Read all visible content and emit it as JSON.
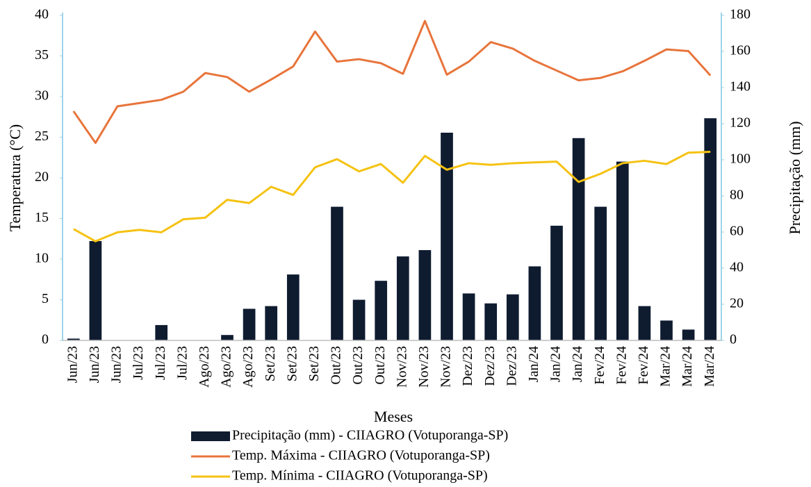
{
  "chart_data": {
    "type": "combo",
    "xlabel": "Meses",
    "ylabel": "Temperatura (°C)",
    "y2label": "Precipitação (mm)",
    "categories": [
      "Jun/23",
      "Jun/23",
      "Jun/23",
      "Jul/23",
      "Jul/23",
      "Jul/23",
      "Ago/23",
      "Ago/23",
      "Ago/23",
      "Set/23",
      "Set/23",
      "Set/23",
      "Out/23",
      "Out/23",
      "Out/23",
      "Nov/23",
      "Nov/23",
      "Nov/23",
      "Dez/23",
      "Dez/23",
      "Dez/23",
      "Jan/24",
      "Jan/24",
      "Jan/24",
      "Fev/24",
      "Fev/24",
      "Fev/24",
      "Mar/24",
      "Mar/24",
      "Mar/24"
    ],
    "series": [
      {
        "name": "Precipitação (mm) - CIIAGRO (Votuporanga-SP)",
        "type": "bar",
        "axis": "y2",
        "color": "#0f1c30",
        "values": [
          1,
          55,
          0,
          0,
          8.5,
          0,
          0,
          3,
          17.5,
          19,
          36.5,
          0,
          74,
          22.5,
          33,
          46.5,
          50,
          115,
          26,
          20.5,
          25.5,
          41,
          63.5,
          112,
          74,
          99,
          19,
          11,
          6,
          123
        ]
      },
      {
        "name": "Temp. Máxima - CIIAGRO (Votuporanga-SP)",
        "type": "line",
        "color": "#e8743b",
        "values": [
          28.2,
          24.3,
          28.8,
          29.2,
          29.6,
          30.6,
          32.9,
          32.4,
          30.6,
          32.1,
          33.7,
          38.0,
          34.3,
          34.6,
          34.1,
          32.8,
          39.3,
          32.7,
          34.3,
          36.7,
          35.9,
          34.4,
          33.2,
          32.0,
          32.3,
          33.1,
          34.4,
          35.8,
          35.6,
          32.6
        ]
      },
      {
        "name": "Temp. Mínima - CIIAGRO (Votuporanga-SP)",
        "type": "line",
        "color": "#f5c211",
        "values": [
          13.7,
          12.2,
          13.3,
          13.6,
          13.3,
          14.9,
          15.1,
          17.3,
          16.9,
          18.9,
          17.9,
          21.3,
          22.3,
          20.8,
          21.7,
          19.4,
          22.7,
          21.0,
          21.8,
          21.6,
          21.8,
          21.9,
          22.0,
          19.5,
          20.5,
          21.8,
          22.1,
          21.7,
          23.1,
          23.2
        ]
      }
    ],
    "ylim": [
      0,
      40
    ],
    "yticks": [
      0,
      5,
      10,
      15,
      20,
      25,
      30,
      35,
      40
    ],
    "y2lim": [
      0,
      180
    ],
    "y2ticks": [
      0,
      20,
      40,
      60,
      80,
      100,
      120,
      140,
      160,
      180
    ],
    "legend": "bottom"
  }
}
